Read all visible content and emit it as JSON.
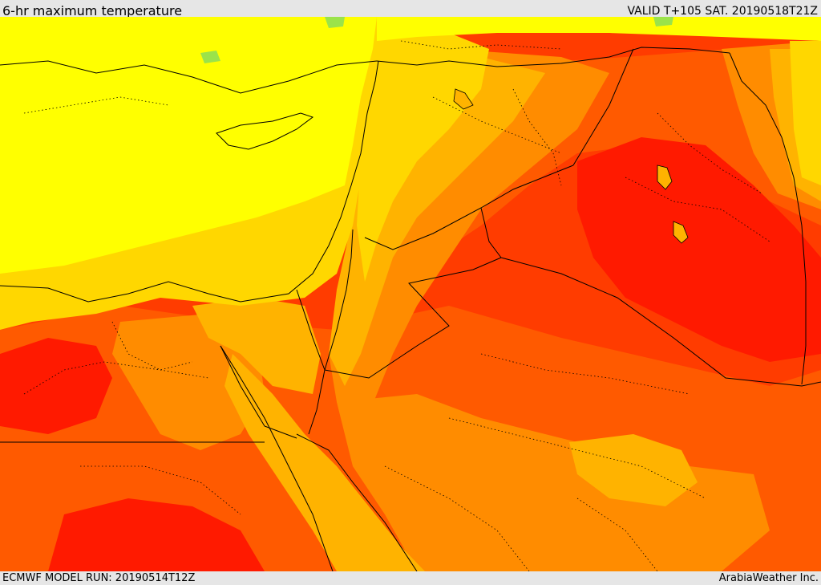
{
  "header": {
    "title": "6-hr maximum temperature",
    "valid_text": "VALID T+105 SAT. 20190518T21Z"
  },
  "footer": {
    "model_run": "ECMWF MODEL RUN: 20190514T12Z",
    "credit": "ArabiaWeather Inc."
  },
  "map": {
    "field": "temperature-fill",
    "palette": {
      "cool_green": "#9be34a",
      "yellow": "#ffff00",
      "gold": "#ffd700",
      "amber": "#ffb300",
      "orange": "#ff8c00",
      "dark_orange": "#ff5a00",
      "red_orange": "#ff3c00",
      "red": "#ff1a00",
      "boundary_line": "#000000"
    }
  }
}
